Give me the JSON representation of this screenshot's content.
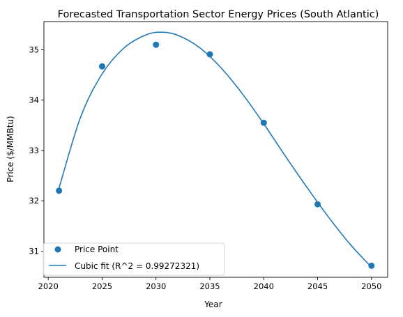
{
  "chart_data": {
    "type": "scatter",
    "title": "Forecasted Transportation Sector Energy Prices (South Atlantic)",
    "xlabel": "Year",
    "ylabel": "Price ($/MMBtu)",
    "xlim": [
      2019.6,
      2051.5
    ],
    "ylim": [
      30.48,
      35.56
    ],
    "xticks": [
      2020,
      2025,
      2030,
      2035,
      2040,
      2045,
      2050
    ],
    "yticks": [
      31,
      32,
      33,
      34,
      35
    ],
    "grid": false,
    "legend_position": "lower-left",
    "colors": {
      "series": "#1f77b4"
    },
    "series": [
      {
        "name": "Price Point",
        "kind": "scatter",
        "x": [
          2021,
          2025,
          2030,
          2035,
          2040,
          2045,
          2050
        ],
        "y": [
          32.2,
          34.67,
          35.1,
          34.91,
          33.55,
          31.93,
          30.71
        ]
      },
      {
        "name": "Cubic fit (R^2 = 0.99272321)",
        "kind": "line",
        "x": [
          2021,
          2023,
          2025,
          2027,
          2029,
          2030.5,
          2032,
          2034,
          2036,
          2038,
          2040,
          2042,
          2044,
          2046,
          2048,
          2050
        ],
        "y": [
          32.25,
          33.66,
          34.52,
          35.03,
          35.29,
          35.35,
          35.29,
          35.05,
          34.65,
          34.13,
          33.53,
          32.89,
          32.27,
          31.68,
          31.14,
          30.68
        ]
      }
    ]
  }
}
